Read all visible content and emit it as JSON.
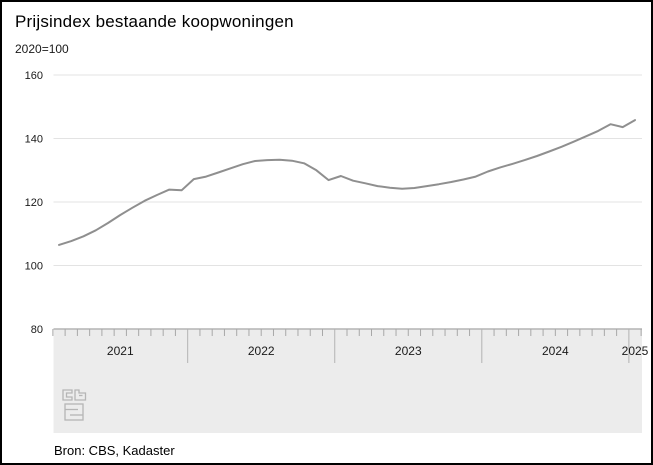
{
  "header": {
    "title": "Prijsindex bestaande koopwoningen",
    "subtitle": "2020=100"
  },
  "footer": {
    "source": "Bron: CBS, Kadaster",
    "logo": "cbs-logo"
  },
  "chart_data": {
    "type": "line",
    "title": "Prijsindex bestaande koopwoningen",
    "unit_note": "2020=100",
    "x": [
      "2021-02",
      "2021-03",
      "2021-04",
      "2021-05",
      "2021-06",
      "2021-07",
      "2021-08",
      "2021-09",
      "2021-10",
      "2021-11",
      "2021-12",
      "2022-01",
      "2022-02",
      "2022-03",
      "2022-04",
      "2022-05",
      "2022-06",
      "2022-07",
      "2022-08",
      "2022-09",
      "2022-10",
      "2022-11",
      "2022-12",
      "2023-01",
      "2023-02",
      "2023-03",
      "2023-04",
      "2023-05",
      "2023-06",
      "2023-07",
      "2023-08",
      "2023-09",
      "2023-10",
      "2023-11",
      "2023-12",
      "2024-01",
      "2024-02",
      "2024-03",
      "2024-04",
      "2024-05",
      "2024-06",
      "2024-07",
      "2024-08",
      "2024-09",
      "2024-10",
      "2024-11",
      "2024-12",
      "2025-01"
    ],
    "series": [
      {
        "name": "Prijsindex bestaande koopwoningen",
        "values": [
          106.5,
          107.7,
          109.2,
          111.1,
          113.4,
          115.9,
          118.2,
          120.4,
          122.2,
          123.9,
          123.7,
          127.2,
          128.0,
          129.3,
          130.6,
          131.9,
          132.9,
          133.2,
          133.3,
          133.0,
          132.2,
          130.0,
          126.9,
          128.2,
          126.7,
          125.9,
          125.0,
          124.5,
          124.2,
          124.4,
          125.0,
          125.6,
          126.3,
          127.1,
          128.0,
          129.6,
          130.9,
          132.0,
          133.2,
          134.5,
          135.9,
          137.4,
          139.0,
          140.7,
          142.4,
          144.5,
          143.6,
          145.8
        ]
      }
    ],
    "ylim": [
      80,
      160
    ],
    "yticks": [
      160,
      140,
      120,
      100,
      80
    ],
    "x_year_labels": [
      "2021",
      "2022",
      "2023",
      "2024",
      "2025"
    ],
    "grid": true,
    "legend": false,
    "line_color": "#8f8f8f",
    "source": "Bron: CBS, Kadaster"
  },
  "colors": {
    "line": "#8f8f8f",
    "gridline": "#e3e3e3",
    "axis_band": "#ececec",
    "axis_border": "#b3b3b3",
    "tick": "#a8a8a8",
    "text": "#1a1a1a"
  }
}
